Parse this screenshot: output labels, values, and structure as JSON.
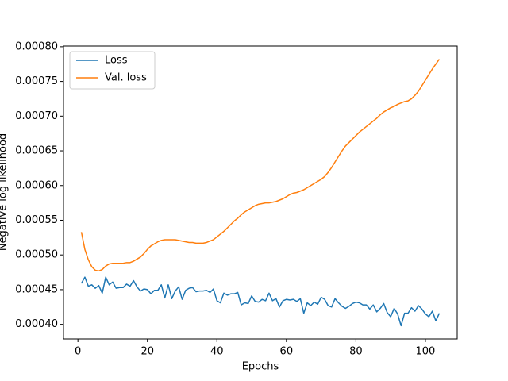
{
  "chart_data": {
    "type": "line",
    "xlabel": "Epochs",
    "ylabel": "Negative log likelihood",
    "x": [
      1,
      2,
      3,
      4,
      5,
      6,
      7,
      8,
      9,
      10,
      11,
      12,
      13,
      14,
      15,
      16,
      17,
      18,
      19,
      20,
      21,
      22,
      23,
      24,
      25,
      26,
      27,
      28,
      29,
      30,
      31,
      32,
      33,
      34,
      35,
      36,
      37,
      38,
      39,
      40,
      41,
      42,
      43,
      44,
      45,
      46,
      47,
      48,
      49,
      50,
      51,
      52,
      53,
      54,
      55,
      56,
      57,
      58,
      59,
      60,
      61,
      62,
      63,
      64,
      65,
      66,
      67,
      68,
      69,
      70,
      71,
      72,
      73,
      74,
      75,
      76,
      77,
      78,
      79,
      80,
      81,
      82,
      83,
      84,
      85,
      86,
      87,
      88,
      89,
      90,
      91,
      92,
      93,
      94,
      95,
      96,
      97,
      98,
      99,
      100,
      101,
      102,
      103,
      104
    ],
    "series": [
      {
        "name": "Loss",
        "color": "#1f77b4",
        "values": [
          0.000459,
          0.000468,
          0.000455,
          0.000457,
          0.000452,
          0.000456,
          0.000445,
          0.000468,
          0.000457,
          0.000461,
          0.000452,
          0.000453,
          0.000453,
          0.000458,
          0.000455,
          0.000463,
          0.000454,
          0.000448,
          0.000451,
          0.00045,
          0.000444,
          0.000449,
          0.000449,
          0.000457,
          0.000438,
          0.000457,
          0.000437,
          0.000448,
          0.000454,
          0.000436,
          0.000449,
          0.000452,
          0.000453,
          0.000447,
          0.000448,
          0.000448,
          0.000449,
          0.000446,
          0.000451,
          0.000434,
          0.000431,
          0.000445,
          0.000442,
          0.000444,
          0.000444,
          0.000446,
          0.000428,
          0.000431,
          0.00043,
          0.000441,
          0.000433,
          0.000432,
          0.000436,
          0.000434,
          0.000445,
          0.000434,
          0.000437,
          0.000425,
          0.000434,
          0.000436,
          0.000435,
          0.000436,
          0.000433,
          0.000437,
          0.000416,
          0.000431,
          0.000427,
          0.000432,
          0.000429,
          0.000439,
          0.000436,
          0.000427,
          0.000425,
          0.000437,
          0.000431,
          0.000426,
          0.000423,
          0.000426,
          0.00043,
          0.000432,
          0.000431,
          0.000428,
          0.000428,
          0.000422,
          0.000428,
          0.000418,
          0.000423,
          0.00043,
          0.000417,
          0.000411,
          0.000423,
          0.000415,
          0.000398,
          0.000416,
          0.000416,
          0.000424,
          0.000419,
          0.000427,
          0.000422,
          0.000415,
          0.000411,
          0.000419,
          0.000405,
          0.000416
        ]
      },
      {
        "name": "Val. loss",
        "color": "#ff7f0e",
        "values": [
          0.000533,
          0.000508,
          0.000493,
          0.000483,
          0.000478,
          0.000477,
          0.000479,
          0.000484,
          0.000487,
          0.000488,
          0.000488,
          0.000488,
          0.000488,
          0.000489,
          0.000489,
          0.000491,
          0.000494,
          0.000497,
          0.000502,
          0.000508,
          0.000513,
          0.000516,
          0.000519,
          0.000521,
          0.000522,
          0.000522,
          0.000522,
          0.000522,
          0.000521,
          0.00052,
          0.000519,
          0.000518,
          0.000518,
          0.000517,
          0.000517,
          0.000517,
          0.000518,
          0.00052,
          0.000522,
          0.000526,
          0.00053,
          0.000534,
          0.000539,
          0.000544,
          0.000549,
          0.000553,
          0.000558,
          0.000562,
          0.000565,
          0.000568,
          0.000571,
          0.000573,
          0.000574,
          0.000575,
          0.000575,
          0.000576,
          0.000577,
          0.000579,
          0.000581,
          0.000584,
          0.000587,
          0.000589,
          0.00059,
          0.000592,
          0.000594,
          0.000597,
          0.0006,
          0.000603,
          0.000606,
          0.000609,
          0.000613,
          0.000619,
          0.000626,
          0.000634,
          0.000642,
          0.00065,
          0.000657,
          0.000662,
          0.000667,
          0.000672,
          0.000677,
          0.000681,
          0.000685,
          0.000689,
          0.000693,
          0.000697,
          0.000702,
          0.000706,
          0.000709,
          0.000712,
          0.000714,
          0.000717,
          0.000719,
          0.000721,
          0.000722,
          0.000725,
          0.00073,
          0.000736,
          0.000744,
          0.000752,
          0.00076,
          0.000768,
          0.000775,
          0.000782
        ]
      }
    ],
    "xlim": [
      -4.15,
      109.15
    ],
    "xticks": [
      0,
      20,
      40,
      60,
      80,
      100
    ],
    "ylim": [
      0.000379,
      0.000801
    ],
    "yticks": [
      {
        "value": 0.0004,
        "label": "0.00040"
      },
      {
        "value": 0.00045,
        "label": "0.00045"
      },
      {
        "value": 0.0005,
        "label": "0.00050"
      },
      {
        "value": 0.00055,
        "label": "0.00055"
      },
      {
        "value": 0.0006,
        "label": "0.00060"
      },
      {
        "value": 0.00065,
        "label": "0.00065"
      },
      {
        "value": 0.0007,
        "label": "0.00070"
      },
      {
        "value": 0.00075,
        "label": "0.00075"
      },
      {
        "value": 0.0008,
        "label": "0.00080"
      }
    ],
    "legend": "upper-left",
    "grid": false
  }
}
